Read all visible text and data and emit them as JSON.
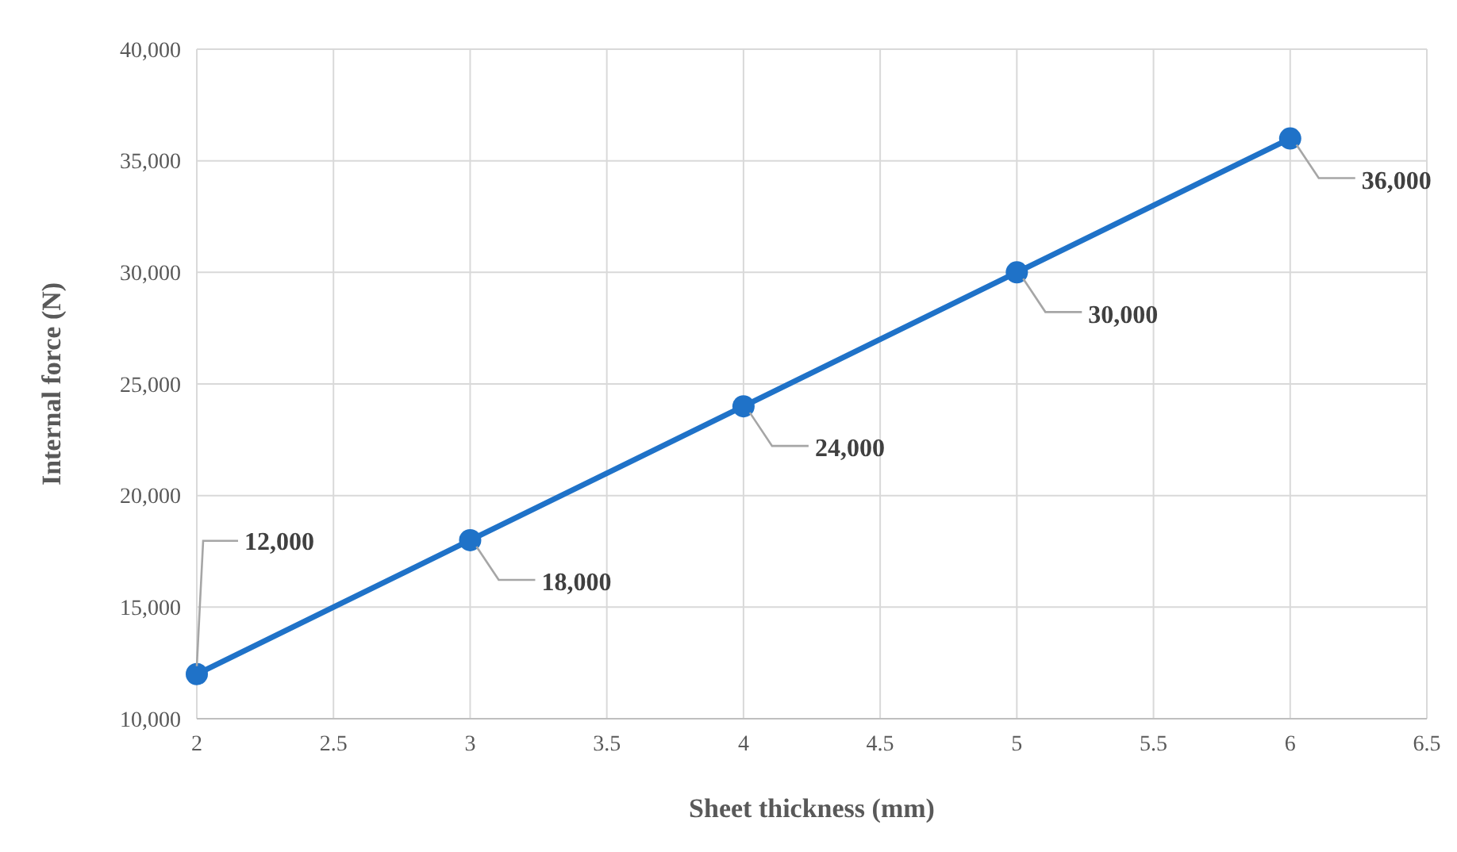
{
  "chart_data": {
    "type": "line",
    "xlabel": "Sheet thickness (mm)",
    "ylabel": "Internal force (N)",
    "x": [
      2,
      3,
      4,
      5,
      6
    ],
    "series": [
      {
        "color": "#1f72c8",
        "values": [
          12000,
          18000,
          24000,
          30000,
          36000
        ],
        "value_labels": [
          "12,000",
          "18,000",
          "24,000",
          "30,000",
          "36,000"
        ]
      }
    ],
    "xlim": [
      2,
      6.5
    ],
    "xticks": [
      2,
      2.5,
      3,
      3.5,
      4,
      4.5,
      5,
      5.5,
      6,
      6.5
    ],
    "ylim": [
      10000,
      40000
    ],
    "yticks": [
      {
        "value": 10000,
        "label": "10,000"
      },
      {
        "value": 15000,
        "label": "15,000"
      },
      {
        "value": 20000,
        "label": "20,000"
      },
      {
        "value": 25000,
        "label": "25,000"
      },
      {
        "value": 30000,
        "label": "30,000"
      },
      {
        "value": 35000,
        "label": "35,000"
      },
      {
        "value": 40000,
        "label": "40,000"
      }
    ],
    "grid": true,
    "marker": "circle",
    "line_style": "solid"
  }
}
